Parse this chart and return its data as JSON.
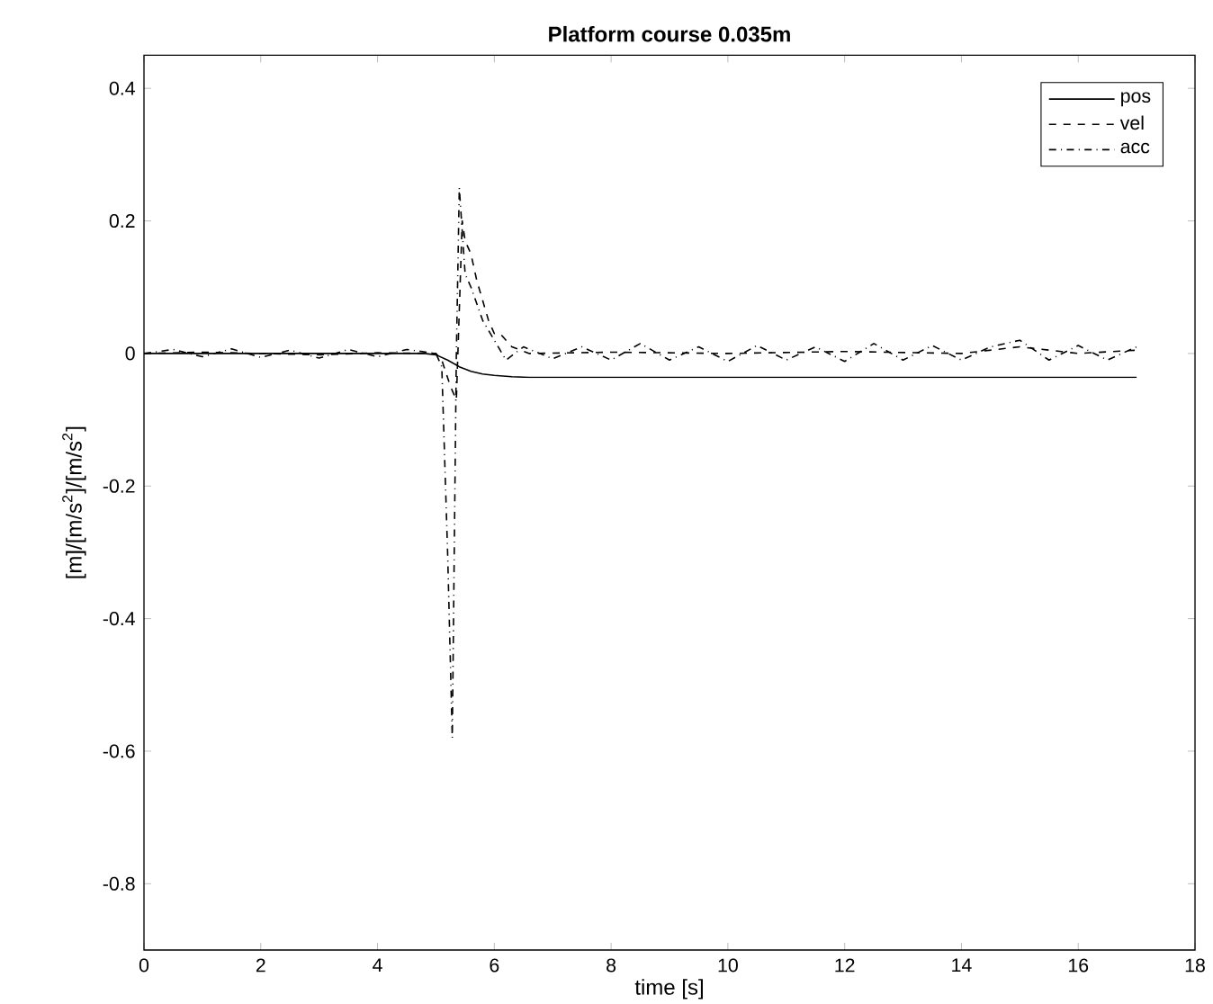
{
  "chart_data": {
    "type": "line",
    "title": "Platform course 0.035m",
    "xlabel": "time [s]",
    "ylabel": "[m]/[m/s$^{2}$]/[m/s$^{2}$]",
    "xlim": [
      0,
      18
    ],
    "ylim": [
      -0.9,
      0.45
    ],
    "xticks": [
      0,
      2,
      4,
      6,
      8,
      10,
      12,
      14,
      16,
      18
    ],
    "yticks": [
      -0.8,
      -0.6,
      -0.4,
      -0.2,
      0,
      0.2,
      0.4
    ],
    "legend": "top right",
    "grid": false,
    "series": [
      {
        "name": "pos",
        "color": "#000000",
        "line_style": "solid",
        "x": [
          0,
          4.8,
          5.0,
          5.2,
          5.4,
          5.6,
          5.8,
          6.0,
          6.3,
          6.6,
          7,
          17
        ],
        "values": [
          0,
          0,
          -0.002,
          -0.01,
          -0.02,
          -0.027,
          -0.031,
          -0.033,
          -0.035,
          -0.036,
          -0.036,
          -0.036
        ]
      },
      {
        "name": "vel",
        "color": "#000000",
        "line_style": "dashed",
        "x": [
          0,
          1,
          2,
          3,
          4,
          5,
          5.1,
          5.25,
          5.35,
          5.45,
          5.5,
          5.6,
          5.7,
          5.8,
          5.9,
          6.0,
          6.1,
          6.3,
          6.6,
          8,
          10,
          12,
          14,
          15,
          16,
          17
        ],
        "values": [
          0,
          0.002,
          0,
          -0.002,
          0.001,
          0,
          -0.01,
          -0.05,
          -0.07,
          0.2,
          0.17,
          0.15,
          0.11,
          0.08,
          0.05,
          0.03,
          0.03,
          0.01,
          0,
          0.002,
          0,
          0.003,
          0,
          0.01,
          0,
          0.005
        ]
      },
      {
        "name": "acc",
        "color": "#000000",
        "line_style": "dashdot",
        "x": [
          0,
          0.5,
          1,
          1.5,
          2,
          2.5,
          3,
          3.5,
          4,
          4.5,
          5,
          5.1,
          5.2,
          5.28,
          5.35,
          5.4,
          5.5,
          5.6,
          5.8,
          6.0,
          6.2,
          6.5,
          7,
          7.5,
          8,
          8.5,
          9,
          9.5,
          10,
          10.5,
          11,
          11.5,
          12,
          12.5,
          13,
          13.5,
          14,
          14.5,
          15,
          15.5,
          16,
          16.5,
          17
        ],
        "values": [
          0,
          0.006,
          -0.005,
          0.007,
          -0.006,
          0.005,
          -0.007,
          0.006,
          -0.005,
          0.006,
          0,
          -0.02,
          -0.3,
          -0.58,
          0,
          0.25,
          0.12,
          0.1,
          0.05,
          0.02,
          -0.01,
          0.01,
          -0.008,
          0.01,
          -0.01,
          0.015,
          -0.01,
          0.01,
          -0.012,
          0.012,
          -0.01,
          0.01,
          -0.012,
          0.015,
          -0.01,
          0.012,
          -0.01,
          0.01,
          0.02,
          -0.01,
          0.012,
          -0.01,
          0.01
        ]
      }
    ]
  }
}
